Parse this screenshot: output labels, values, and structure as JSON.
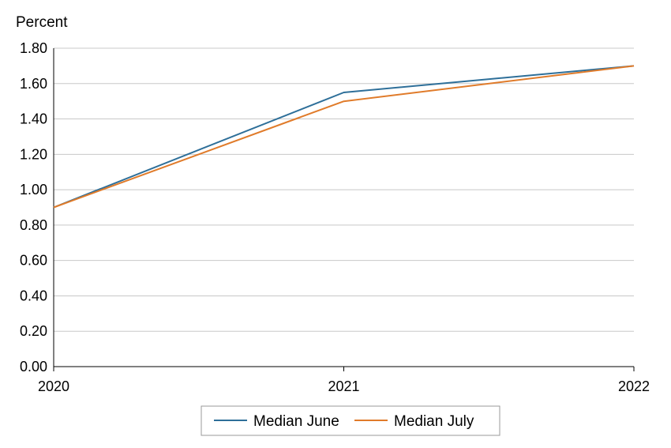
{
  "chart_data": {
    "type": "line",
    "ylabel": "Percent",
    "ylim": [
      0,
      1.8
    ],
    "y_ticks": [
      "0.00",
      "0.20",
      "0.40",
      "0.60",
      "0.80",
      "1.00",
      "1.20",
      "1.40",
      "1.60",
      "1.80"
    ],
    "x": [
      "2020",
      "2021",
      "2022"
    ],
    "grid": "horizontal",
    "legend_position": "bottom-center",
    "series": [
      {
        "name": "Median June",
        "color": "#2e6f99",
        "values": [
          0.9,
          1.55,
          1.7
        ]
      },
      {
        "name": "Median July",
        "color": "#e07b2a",
        "values": [
          0.9,
          1.5,
          1.7
        ]
      }
    ]
  }
}
